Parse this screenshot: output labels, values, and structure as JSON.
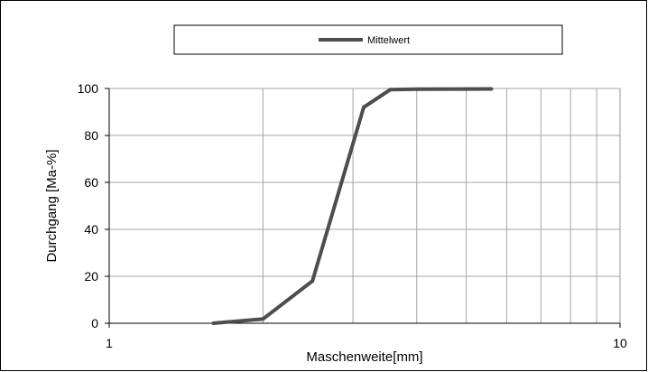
{
  "chart_data": {
    "type": "line",
    "x_scale": "log",
    "xlim": [
      1,
      10
    ],
    "ylim": [
      0,
      100
    ],
    "xlabel": "Maschenweite[mm]",
    "ylabel": "Durchgang [Ma-%]",
    "x_tick_labels": [
      "1",
      "10"
    ],
    "y_tick_labels": [
      "0",
      "20",
      "40",
      "60",
      "80",
      "100"
    ],
    "y_ticks": [
      0,
      20,
      40,
      60,
      80,
      100
    ],
    "grid": true,
    "legend_position": "top",
    "series": [
      {
        "name": "Mittelwert",
        "color": "#4d4d4d",
        "x": [
          1.6,
          2.0,
          2.5,
          3.15,
          3.55,
          4.0,
          5.6
        ],
        "y": [
          0,
          1.8,
          18,
          92,
          99.5,
          99.7,
          99.8
        ]
      }
    ]
  }
}
